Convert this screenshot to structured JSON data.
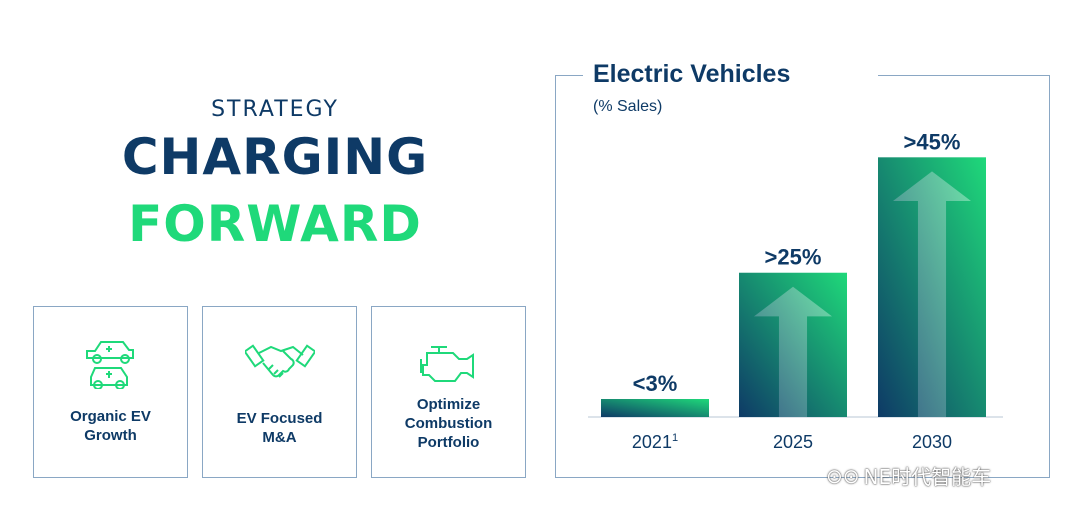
{
  "left": {
    "strategy": "STRATEGY",
    "headline_line1": "CHARGING",
    "headline_line2": "FORWARD",
    "cards": [
      {
        "label": "Organic EV\nGrowth",
        "icon": "ev-cars-icon"
      },
      {
        "label": "EV Focused\nM&A",
        "icon": "handshake-icon"
      },
      {
        "label": "Optimize\nCombustion\nPortfolio",
        "icon": "engine-icon"
      }
    ]
  },
  "chart_data": {
    "type": "bar",
    "title": "Electric Vehicles",
    "subtitle": "(% Sales)",
    "categories": [
      "2021",
      "2025",
      "2030"
    ],
    "category_superscripts": [
      "1",
      "",
      ""
    ],
    "values": [
      3,
      25,
      45
    ],
    "data_labels": [
      "<3%",
      ">25%",
      ">45%"
    ],
    "ylim": [
      0,
      48
    ],
    "grid": false,
    "colors": {
      "dark": "#0e3a66",
      "green": "#1fd97a"
    }
  },
  "watermark": "NE时代智能车",
  "colors": {
    "navy": "#0e3a66",
    "green": "#1fd97a",
    "border": "#8aa7c4"
  }
}
